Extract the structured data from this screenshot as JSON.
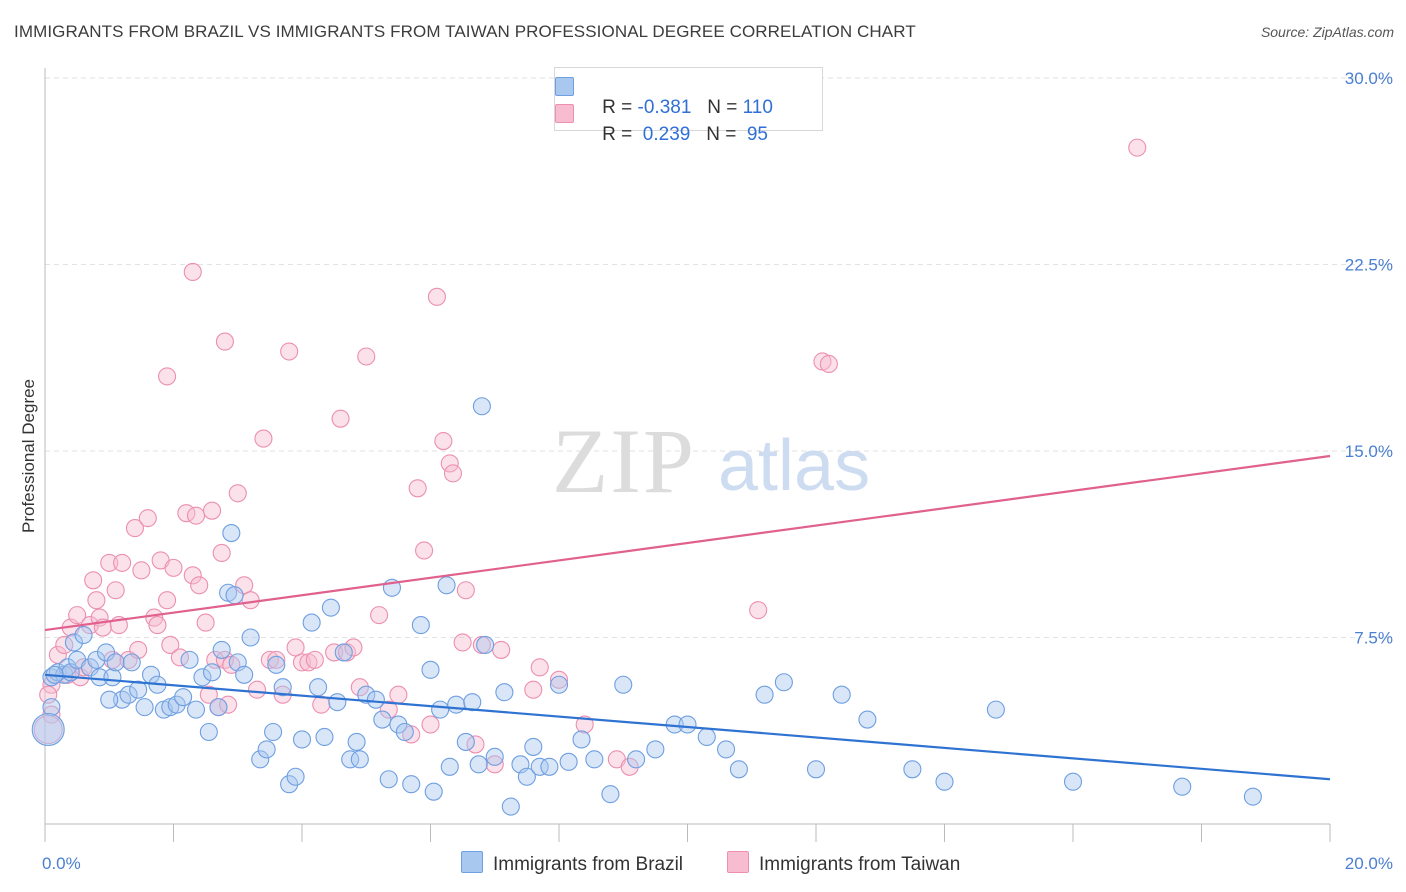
{
  "title": "IMMIGRANTS FROM BRAZIL VS IMMIGRANTS FROM TAIWAN PROFESSIONAL DEGREE CORRELATION CHART",
  "source": "Source: ZipAtlas.com",
  "watermark": {
    "zip": "ZIP",
    "atlas": "atlas"
  },
  "legend": {
    "r_label": "R =",
    "n_label": "N =",
    "brazil": {
      "r": "-0.381",
      "n": "110"
    },
    "taiwan": {
      "r": "0.239",
      "n": "95"
    }
  },
  "colors": {
    "brazil_fill": "#a9c8f0",
    "brazil_stroke": "#6f9fe0",
    "brazil_line": "#2f73d2",
    "taiwan_fill": "#f7bcd0",
    "taiwan_stroke": "#ec8fb0",
    "taiwan_line": "#e0608e",
    "tick": "#4a7fd1"
  },
  "chart_data": {
    "type": "scatter",
    "title": "IMMIGRANTS FROM BRAZIL VS IMMIGRANTS FROM TAIWAN PROFESSIONAL DEGREE CORRELATION CHART",
    "xlabel": "",
    "ylabel": "Professional Degree",
    "xlim": [
      0,
      20
    ],
    "ylim": [
      0,
      30
    ],
    "x_tick_labels": [
      "0.0%",
      "20.0%"
    ],
    "y_ticks": [
      7.5,
      15,
      22.5,
      30
    ],
    "y_tick_labels": [
      "7.5%",
      "15.0%",
      "22.5%",
      "30.0%"
    ],
    "grid": true,
    "series": [
      {
        "name": "Immigrants from Brazil",
        "trend": {
          "x": [
            0,
            20
          ],
          "y": [
            6.0,
            1.8
          ]
        },
        "points": [
          [
            0.1,
            5.9
          ],
          [
            0.2,
            6.1
          ],
          [
            0.3,
            6.0
          ],
          [
            0.35,
            6.3
          ],
          [
            0.4,
            6.1
          ],
          [
            0.45,
            7.3
          ],
          [
            0.5,
            6.6
          ],
          [
            0.6,
            7.6
          ],
          [
            0.7,
            6.3
          ],
          [
            0.8,
            6.6
          ],
          [
            0.85,
            5.9
          ],
          [
            0.95,
            6.9
          ],
          [
            1.05,
            5.9
          ],
          [
            1.1,
            6.5
          ],
          [
            1.2,
            5.0
          ],
          [
            1.3,
            5.2
          ],
          [
            1.35,
            6.5
          ],
          [
            1.45,
            5.4
          ],
          [
            1.55,
            4.7
          ],
          [
            1.65,
            6.0
          ],
          [
            1.75,
            5.6
          ],
          [
            1.85,
            4.6
          ],
          [
            1.95,
            4.7
          ],
          [
            2.05,
            4.8
          ],
          [
            2.15,
            5.1
          ],
          [
            2.25,
            6.6
          ],
          [
            2.35,
            4.6
          ],
          [
            2.45,
            5.9
          ],
          [
            2.55,
            3.7
          ],
          [
            2.6,
            6.1
          ],
          [
            2.7,
            4.7
          ],
          [
            2.75,
            7.0
          ],
          [
            2.85,
            9.3
          ],
          [
            2.95,
            9.2
          ],
          [
            3.0,
            6.5
          ],
          [
            3.1,
            6.0
          ],
          [
            3.2,
            7.5
          ],
          [
            3.35,
            2.6
          ],
          [
            3.45,
            3.0
          ],
          [
            3.55,
            3.7
          ],
          [
            3.6,
            6.4
          ],
          [
            3.7,
            5.5
          ],
          [
            3.8,
            1.6
          ],
          [
            3.9,
            1.9
          ],
          [
            4.0,
            3.4
          ],
          [
            4.15,
            8.1
          ],
          [
            4.25,
            5.5
          ],
          [
            4.35,
            3.5
          ],
          [
            4.45,
            8.7
          ],
          [
            4.55,
            4.9
          ],
          [
            4.65,
            6.9
          ],
          [
            4.75,
            2.6
          ],
          [
            4.85,
            3.3
          ],
          [
            4.9,
            2.6
          ],
          [
            5.0,
            5.2
          ],
          [
            5.15,
            5.0
          ],
          [
            5.25,
            4.2
          ],
          [
            5.35,
            1.8
          ],
          [
            5.5,
            4.0
          ],
          [
            5.6,
            3.7
          ],
          [
            5.7,
            1.6
          ],
          [
            5.85,
            8.0
          ],
          [
            6.0,
            6.2
          ],
          [
            6.05,
            1.3
          ],
          [
            6.15,
            4.6
          ],
          [
            6.3,
            2.3
          ],
          [
            6.4,
            4.8
          ],
          [
            6.55,
            3.3
          ],
          [
            6.65,
            4.9
          ],
          [
            6.75,
            2.4
          ],
          [
            6.85,
            7.2
          ],
          [
            7.0,
            2.7
          ],
          [
            7.15,
            5.3
          ],
          [
            7.25,
            0.7
          ],
          [
            7.4,
            2.4
          ],
          [
            7.5,
            1.9
          ],
          [
            7.6,
            3.1
          ],
          [
            7.7,
            2.3
          ],
          [
            7.85,
            2.3
          ],
          [
            8.0,
            5.6
          ],
          [
            8.15,
            2.5
          ],
          [
            8.35,
            3.4
          ],
          [
            8.55,
            2.6
          ],
          [
            8.8,
            1.2
          ],
          [
            9.0,
            5.6
          ],
          [
            9.2,
            2.6
          ],
          [
            9.5,
            3.0
          ],
          [
            9.8,
            4.0
          ],
          [
            10.0,
            4.0
          ],
          [
            10.3,
            3.5
          ],
          [
            10.6,
            3.0
          ],
          [
            10.8,
            2.2
          ],
          [
            11.2,
            5.2
          ],
          [
            11.5,
            5.7
          ],
          [
            12.0,
            2.2
          ],
          [
            12.4,
            5.2
          ],
          [
            12.8,
            4.2
          ],
          [
            13.5,
            2.2
          ],
          [
            14.0,
            1.7
          ],
          [
            14.8,
            4.6
          ],
          [
            16.0,
            1.7
          ],
          [
            17.7,
            1.5
          ],
          [
            18.8,
            1.1
          ],
          [
            0.1,
            4.7
          ],
          [
            0.15,
            6.0
          ],
          [
            1.0,
            5.0
          ],
          [
            2.9,
            11.7
          ],
          [
            6.8,
            16.8
          ],
          [
            6.25,
            9.6
          ],
          [
            5.4,
            9.5
          ]
        ]
      },
      {
        "name": "Immigrants from Taiwan",
        "trend": {
          "x": [
            0,
            20
          ],
          "y": [
            7.8,
            14.8
          ]
        },
        "points": [
          [
            0.1,
            5.6
          ],
          [
            0.2,
            6.8
          ],
          [
            0.3,
            7.2
          ],
          [
            0.35,
            6.0
          ],
          [
            0.4,
            7.9
          ],
          [
            0.5,
            8.4
          ],
          [
            0.55,
            5.9
          ],
          [
            0.6,
            6.3
          ],
          [
            0.7,
            8.0
          ],
          [
            0.75,
            9.8
          ],
          [
            0.8,
            9.0
          ],
          [
            0.85,
            8.3
          ],
          [
            0.9,
            7.9
          ],
          [
            1.0,
            10.5
          ],
          [
            1.05,
            6.6
          ],
          [
            1.1,
            9.4
          ],
          [
            1.15,
            8.0
          ],
          [
            1.2,
            10.5
          ],
          [
            1.3,
            6.6
          ],
          [
            1.4,
            11.9
          ],
          [
            1.45,
            7.0
          ],
          [
            1.5,
            10.2
          ],
          [
            1.6,
            12.3
          ],
          [
            1.7,
            8.3
          ],
          [
            1.75,
            8.0
          ],
          [
            1.8,
            10.6
          ],
          [
            1.9,
            9.0
          ],
          [
            1.95,
            7.2
          ],
          [
            2.0,
            10.3
          ],
          [
            2.1,
            6.7
          ],
          [
            2.2,
            12.5
          ],
          [
            2.3,
            10.0
          ],
          [
            2.35,
            12.4
          ],
          [
            2.4,
            9.6
          ],
          [
            2.5,
            8.1
          ],
          [
            2.55,
            5.2
          ],
          [
            2.6,
            12.6
          ],
          [
            2.65,
            6.6
          ],
          [
            2.7,
            4.7
          ],
          [
            2.75,
            10.9
          ],
          [
            2.8,
            6.6
          ],
          [
            2.85,
            4.8
          ],
          [
            2.9,
            6.4
          ],
          [
            3.0,
            13.3
          ],
          [
            3.1,
            9.6
          ],
          [
            3.2,
            9.0
          ],
          [
            3.3,
            5.4
          ],
          [
            3.4,
            15.5
          ],
          [
            3.5,
            6.6
          ],
          [
            3.6,
            6.6
          ],
          [
            3.7,
            5.2
          ],
          [
            3.8,
            19.0
          ],
          [
            3.9,
            7.1
          ],
          [
            4.0,
            6.5
          ],
          [
            4.1,
            6.5
          ],
          [
            4.2,
            6.6
          ],
          [
            4.3,
            4.8
          ],
          [
            4.5,
            6.9
          ],
          [
            4.6,
            16.3
          ],
          [
            4.7,
            6.9
          ],
          [
            4.8,
            7.1
          ],
          [
            4.9,
            5.5
          ],
          [
            5.0,
            18.8
          ],
          [
            5.2,
            8.4
          ],
          [
            5.35,
            4.6
          ],
          [
            5.5,
            5.2
          ],
          [
            5.7,
            3.6
          ],
          [
            5.8,
            13.5
          ],
          [
            5.9,
            11.0
          ],
          [
            6.0,
            4.0
          ],
          [
            6.1,
            21.2
          ],
          [
            6.2,
            15.4
          ],
          [
            6.3,
            14.5
          ],
          [
            6.35,
            14.1
          ],
          [
            6.5,
            7.3
          ],
          [
            6.55,
            9.4
          ],
          [
            6.7,
            3.2
          ],
          [
            6.8,
            7.2
          ],
          [
            7.0,
            2.4
          ],
          [
            7.1,
            7.0
          ],
          [
            7.6,
            5.4
          ],
          [
            7.7,
            6.3
          ],
          [
            8.0,
            5.8
          ],
          [
            8.4,
            4.0
          ],
          [
            8.9,
            2.6
          ],
          [
            9.1,
            2.3
          ],
          [
            11.1,
            8.6
          ],
          [
            12.1,
            18.6
          ],
          [
            12.2,
            18.5
          ],
          [
            17.0,
            27.2
          ],
          [
            2.3,
            22.2
          ],
          [
            1.9,
            18.0
          ],
          [
            2.8,
            19.4
          ],
          [
            0.05,
            5.2
          ],
          [
            0.1,
            4.4
          ]
        ]
      }
    ],
    "legend_entries": [
      "Immigrants from Brazil",
      "Immigrants from Taiwan"
    ]
  }
}
